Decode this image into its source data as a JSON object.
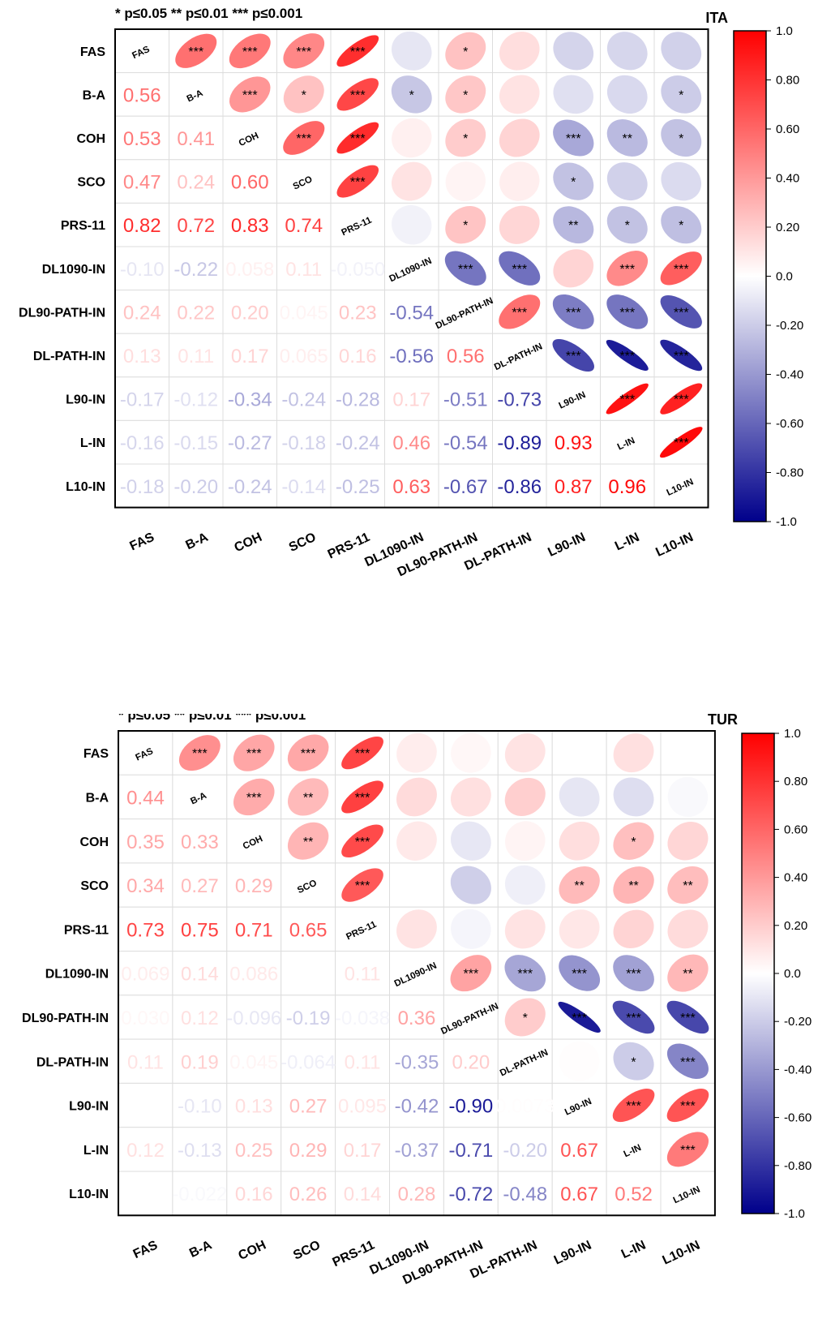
{
  "panels_meta": {
    "variables": [
      "FAS",
      "B-A",
      "COH",
      "SCO",
      "PRS-11",
      "DL1090-IN",
      "DL90-PATH-IN",
      "DL-PATH-IN",
      "L90-IN",
      "L-IN",
      "L10-IN"
    ],
    "significance_legend": "* p≤0.05  ** p≤0.01  *** p≤0.001",
    "colorbar_ticks": [
      "1.0",
      "0.80",
      "0.60",
      "0.40",
      "0.20",
      "0.0",
      "-0.20",
      "-0.40",
      "-0.60",
      "-0.80",
      "-1.0"
    ],
    "colors": {
      "positive": "#ff0000",
      "neutral": "#ffffff",
      "negative": "#00008b",
      "frame": "#000000",
      "grid": "#dddddd"
    }
  },
  "chart_data": [
    {
      "type": "heatmap",
      "title": "ITA",
      "color_range": [
        -1,
        1
      ],
      "lower_labels": [
        [],
        [
          "0.56"
        ],
        [
          "0.53",
          "0.41"
        ],
        [
          "0.47",
          "0.24",
          "0.60"
        ],
        [
          "0.82",
          "0.72",
          "0.83",
          "0.74"
        ],
        [
          "-0.10",
          "-0.22",
          "0.058",
          "0.11",
          "-0.050"
        ],
        [
          "0.24",
          "0.22",
          "0.20",
          "0.045",
          "0.23",
          "-0.54"
        ],
        [
          "0.13",
          "0.11",
          "0.17",
          "0.065",
          "0.16",
          "-0.56",
          "0.56"
        ],
        [
          "-0.17",
          "-0.12",
          "-0.34",
          "-0.24",
          "-0.28",
          "0.17",
          "-0.51",
          "-0.73"
        ],
        [
          "-0.16",
          "-0.15",
          "-0.27",
          "-0.18",
          "-0.24",
          "0.46",
          "-0.54",
          "-0.89",
          "0.93"
        ],
        [
          "-0.18",
          "-0.20",
          "-0.24",
          "-0.14",
          "-0.25",
          "0.63",
          "-0.67",
          "-0.86",
          "0.87",
          "0.96"
        ]
      ],
      "upper_stars": [
        [
          "",
          "***",
          "***",
          "***",
          "***",
          "",
          "*",
          "",
          "",
          "",
          ""
        ],
        [
          "",
          "",
          "***",
          "*",
          "***",
          "*",
          "*",
          "",
          "",
          "",
          "*"
        ],
        [
          "",
          "",
          "",
          "***",
          "***",
          "",
          "*",
          "",
          "***",
          "**",
          "*"
        ],
        [
          "",
          "",
          "",
          "",
          "***",
          "",
          "",
          "",
          "*",
          "",
          ""
        ],
        [
          "",
          "",
          "",
          "",
          "",
          "",
          "*",
          "",
          "**",
          "*",
          "*"
        ],
        [
          "",
          "",
          "",
          "",
          "",
          "",
          "***",
          "***",
          "",
          "***",
          "***"
        ],
        [
          "",
          "",
          "",
          "",
          "",
          "",
          "",
          "***",
          "***",
          "***",
          "***"
        ],
        [
          "",
          "",
          "",
          "",
          "",
          "",
          "",
          "",
          "***",
          "***",
          "***"
        ],
        [
          "",
          "",
          "",
          "",
          "",
          "",
          "",
          "",
          "",
          "***",
          "***"
        ],
        [
          "",
          "",
          "",
          "",
          "",
          "",
          "",
          "",
          "",
          "",
          "***"
        ],
        [
          "",
          "",
          "",
          "",
          "",
          "",
          "",
          "",
          "",
          "",
          ""
        ]
      ]
    },
    {
      "type": "heatmap",
      "title": "TUR",
      "color_range": [
        -1,
        1
      ],
      "lower_labels": [
        [],
        [
          "0.44"
        ],
        [
          "0.35",
          "0.33"
        ],
        [
          "0.34",
          "0.27",
          "0.29"
        ],
        [
          "0.73",
          "0.75",
          "0.71",
          "0.65"
        ],
        [
          "0.069",
          "0.14",
          "0.086",
          "",
          "0.11"
        ],
        [
          "0.030",
          "0.12",
          "-0.096",
          "-0.19",
          "-0.038",
          "0.36"
        ],
        [
          "0.11",
          "0.19",
          "0.045",
          "-0.064",
          "0.11",
          "-0.35",
          "0.20"
        ],
        [
          "",
          "-0.10",
          "0.13",
          "0.27",
          "0.095",
          "-0.42",
          "-0.90",
          "0.0073"
        ],
        [
          "0.12",
          "-0.13",
          "0.25",
          "0.29",
          "0.17",
          "-0.37",
          "-0.71",
          "-0.20",
          "0.67"
        ],
        [
          "",
          "-0.022",
          "0.16",
          "0.26",
          "0.14",
          "0.28",
          "-0.72",
          "-0.48",
          "0.67",
          "0.52"
        ]
      ],
      "upper_stars": [
        [
          "",
          "***",
          "***",
          "***",
          "***",
          "",
          "",
          "",
          "",
          "",
          ""
        ],
        [
          "",
          "",
          "***",
          "**",
          "***",
          "",
          "",
          "",
          "",
          "",
          ""
        ],
        [
          "",
          "",
          "",
          "**",
          "***",
          "",
          "",
          "",
          "",
          "*",
          ""
        ],
        [
          "",
          "",
          "",
          "",
          "***",
          "",
          "",
          "",
          "**",
          "**",
          "**"
        ],
        [
          "",
          "",
          "",
          "",
          "",
          "",
          "",
          "",
          "",
          "",
          ""
        ],
        [
          "",
          "",
          "",
          "",
          "",
          "",
          "***",
          "***",
          "***",
          "***",
          "**"
        ],
        [
          "",
          "",
          "",
          "",
          "",
          "",
          "",
          "*",
          "***",
          "***",
          "***"
        ],
        [
          "",
          "",
          "",
          "",
          "",
          "",
          "",
          "",
          "",
          "*",
          "***"
        ],
        [
          "",
          "",
          "",
          "",
          "",
          "",
          "",
          "",
          "",
          "***",
          "***"
        ],
        [
          "",
          "",
          "",
          "",
          "",
          "",
          "",
          "",
          "",
          "",
          "***"
        ],
        [
          "",
          "",
          "",
          "",
          "",
          "",
          "",
          "",
          "",
          "",
          ""
        ]
      ]
    }
  ]
}
